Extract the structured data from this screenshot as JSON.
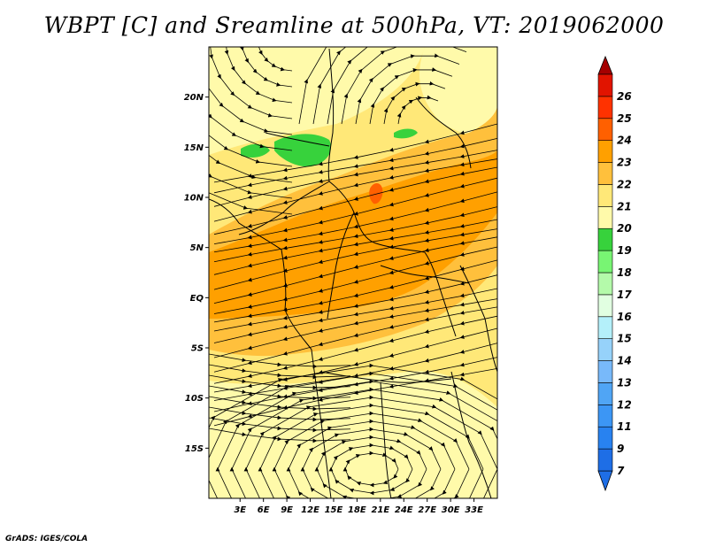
{
  "title": "WBPT [C] and Sreamline at 500hPa, VT: 2019062000",
  "credit": "GrADS: IGES/COLA",
  "map": {
    "lon_range": [
      -1,
      36
    ],
    "lat_range": [
      -20,
      25
    ],
    "lat_ticks": [
      {
        "value": 20,
        "label": "20N"
      },
      {
        "value": 15,
        "label": "15N"
      },
      {
        "value": 10,
        "label": "10N"
      },
      {
        "value": 5,
        "label": "5N"
      },
      {
        "value": 0,
        "label": "EQ"
      },
      {
        "value": -5,
        "label": "5S"
      },
      {
        "value": -10,
        "label": "10S"
      },
      {
        "value": -15,
        "label": "15S"
      }
    ],
    "lon_ticks": [
      {
        "value": 3,
        "label": "3E"
      },
      {
        "value": 6,
        "label": "6E"
      },
      {
        "value": 9,
        "label": "9E"
      },
      {
        "value": 12,
        "label": "12E"
      },
      {
        "value": 15,
        "label": "15E"
      },
      {
        "value": 18,
        "label": "18E"
      },
      {
        "value": 21,
        "label": "21E"
      },
      {
        "value": 24,
        "label": "24E"
      },
      {
        "value": 27,
        "label": "27E"
      },
      {
        "value": 30,
        "label": "30E"
      },
      {
        "value": 33,
        "label": "33E"
      }
    ]
  },
  "colorbar": {
    "levels": [
      {
        "label": "7",
        "color": "#1e6ee6"
      },
      {
        "label": "9",
        "color": "#2882f0"
      },
      {
        "label": "11",
        "color": "#3c96f5"
      },
      {
        "label": "12",
        "color": "#50a5f5"
      },
      {
        "label": "13",
        "color": "#78b9fa"
      },
      {
        "label": "14",
        "color": "#96d2fa"
      },
      {
        "label": "15",
        "color": "#b4f0fa"
      },
      {
        "label": "16",
        "color": "#e1ffe1"
      },
      {
        "label": "17",
        "color": "#b4faaa"
      },
      {
        "label": "18",
        "color": "#78f573"
      },
      {
        "label": "19",
        "color": "#37d23c"
      },
      {
        "label": "20",
        "color": "#fffaaa"
      },
      {
        "label": "21",
        "color": "#ffe878"
      },
      {
        "label": "22",
        "color": "#ffc03c"
      },
      {
        "label": "23",
        "color": "#ffa000"
      },
      {
        "label": "24",
        "color": "#ff6000"
      },
      {
        "label": "25",
        "color": "#ff3200"
      },
      {
        "label": "26",
        "color": "#e11400"
      }
    ],
    "top_arrow_color": "#a50000",
    "bottom_arrow_color": "#1e6ee6"
  },
  "field_colors": {
    "c18": "#fffaaa",
    "c19": "#ffe878",
    "c20": "#ffc03c",
    "c21": "#ffa000",
    "c22": "#ff6000",
    "green": "#37d23c"
  }
}
